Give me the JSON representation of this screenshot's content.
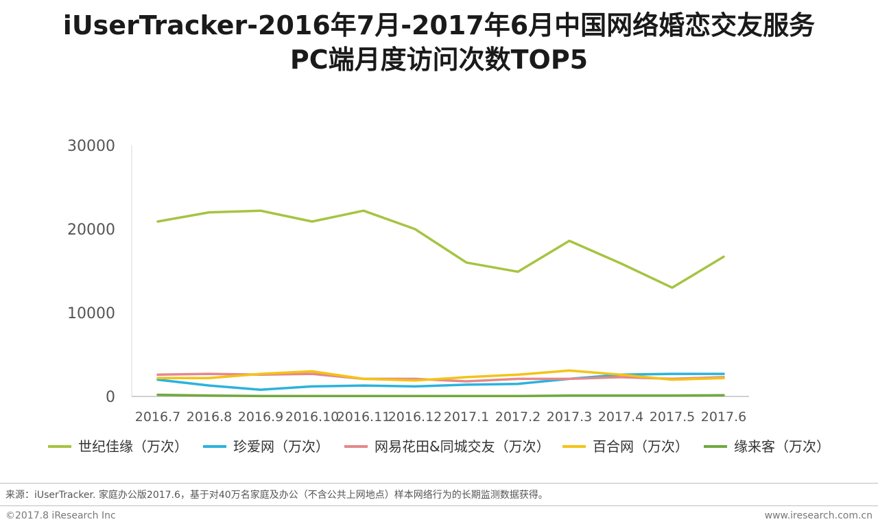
{
  "title_line1": "iUserTracker-2016年7月-2017年6月中国网络婚恋交友服务",
  "title_line2": "PC端月度访问次数TOP5",
  "source": "来源：iUserTracker. 家庭办公版2017.6，基于对40万名家庭及办公（不含公共上网地点）样本网络行为的长期监测数据获得。",
  "copyright": "©2017.8 iResearch Inc",
  "website": "www.iresearch.com.cn",
  "chart_data": {
    "type": "line",
    "title": "iUserTracker-2016年7月-2017年6月中国网络婚恋交友服务PC端月度访问次数TOP5",
    "xlabel": "",
    "ylabel": "",
    "ylim": [
      0,
      30000
    ],
    "yticks": [
      0,
      10000,
      20000,
      30000
    ],
    "grid": false,
    "legend_position": "bottom",
    "categories": [
      "2016.7",
      "2016.8",
      "2016.9",
      "2016.10",
      "2016.11",
      "2016.12",
      "2017.1",
      "2017.2",
      "2017.3",
      "2017.4",
      "2017.5",
      "2017.6"
    ],
    "series": [
      {
        "name": "世纪佳缘（万次）",
        "color": "#a5c440",
        "values": [
          20900,
          22000,
          22200,
          20900,
          22200,
          20000,
          16000,
          14900,
          18600,
          15900,
          13000,
          16700
        ]
      },
      {
        "name": "珍爱网（万次）",
        "color": "#2ab3dc",
        "values": [
          2000,
          1300,
          800,
          1200,
          1300,
          1200,
          1400,
          1500,
          2100,
          2600,
          2700,
          2700
        ]
      },
      {
        "name": "网易花田&同城交友（万次）",
        "color": "#e5888a",
        "values": [
          2600,
          2700,
          2600,
          2700,
          2100,
          2100,
          1800,
          2100,
          2100,
          2300,
          2100,
          2300
        ]
      },
      {
        "name": "百合网（万次）",
        "color": "#f3c318",
        "values": [
          2200,
          2200,
          2700,
          3000,
          2100,
          1900,
          2300,
          2600,
          3100,
          2600,
          2000,
          2200
        ]
      },
      {
        "name": "缘来客（万次）",
        "color": "#71a83e",
        "values": [
          200,
          100,
          50,
          50,
          50,
          50,
          50,
          50,
          100,
          100,
          100,
          150
        ]
      }
    ]
  }
}
